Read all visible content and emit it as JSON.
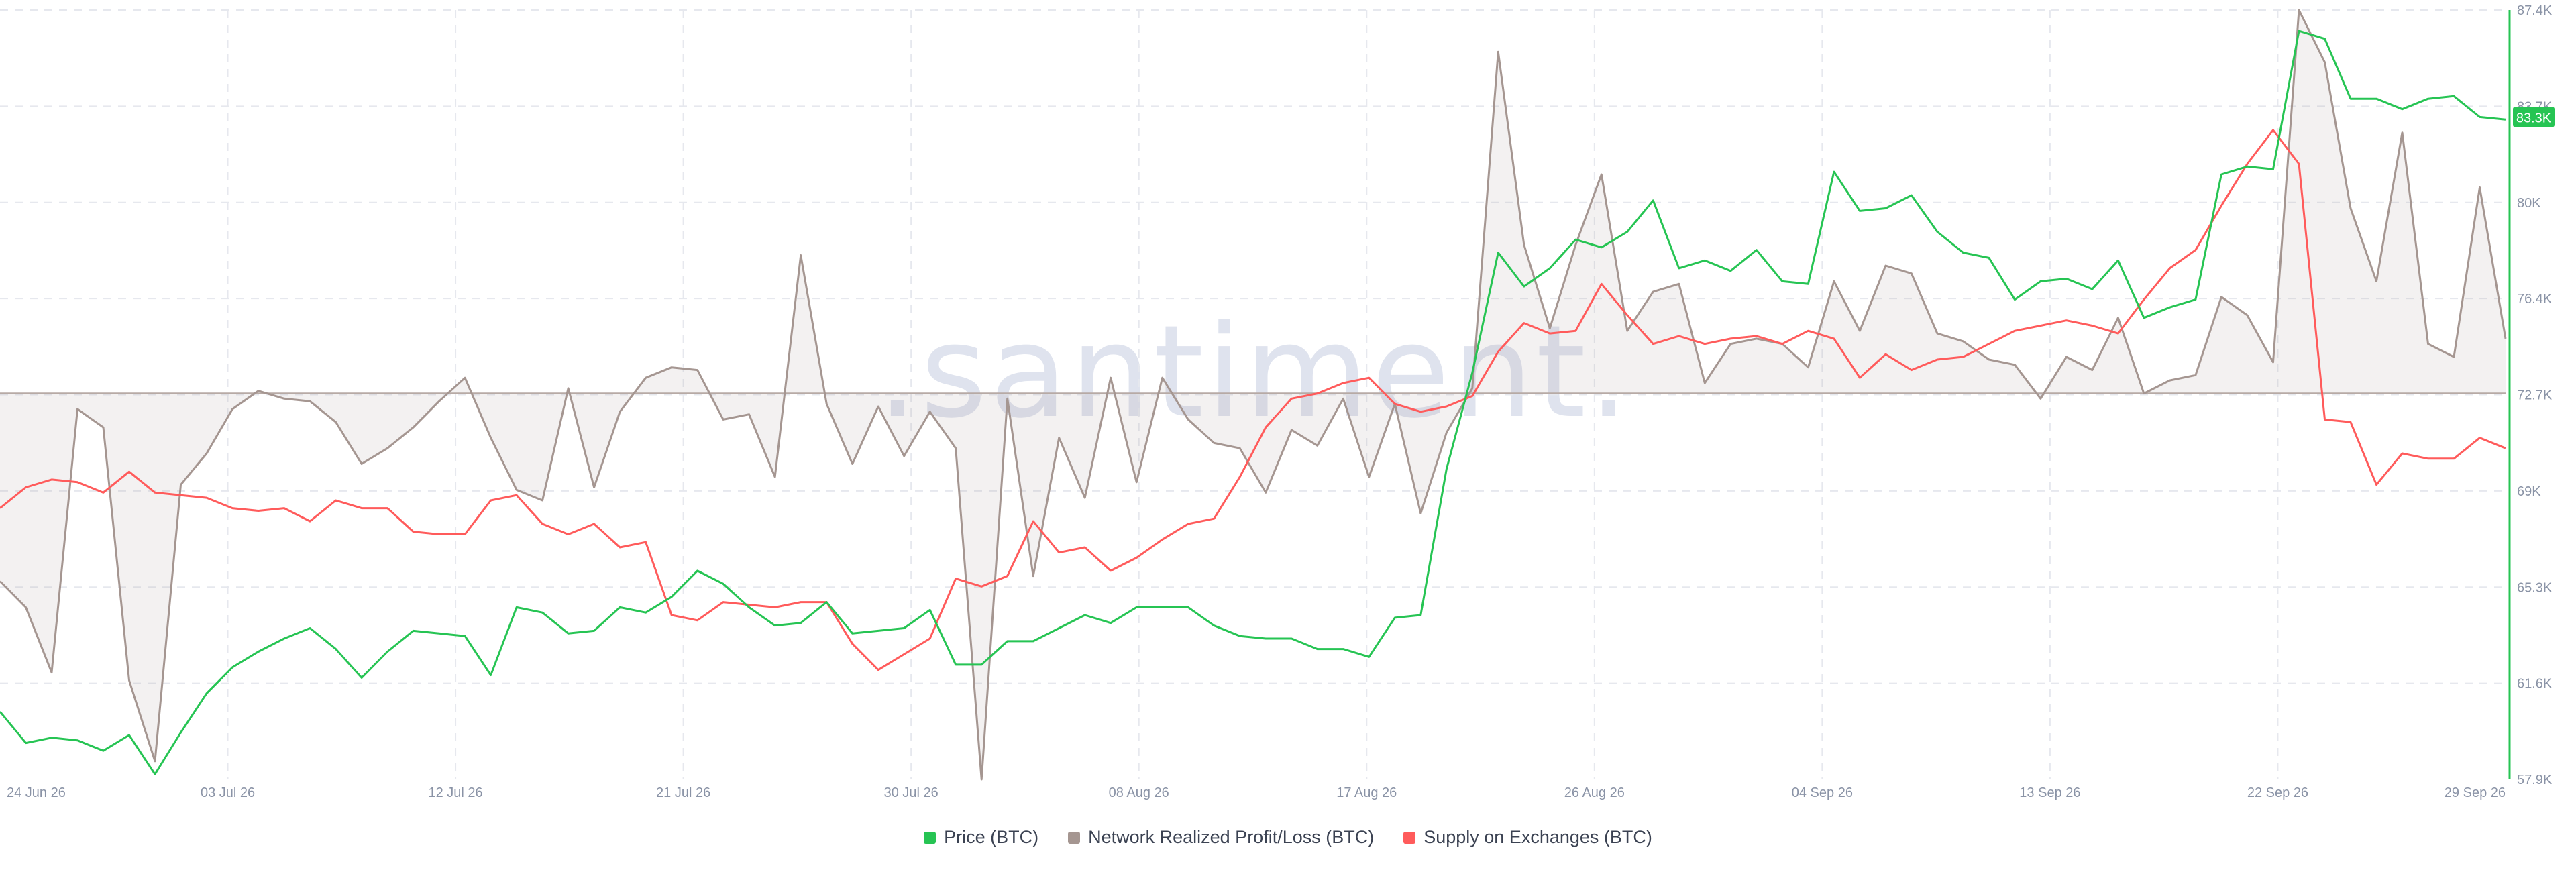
{
  "watermark": ".santiment.",
  "legend": [
    {
      "label": "Price (BTC)",
      "color": "#26c453"
    },
    {
      "label": "Network Realized Profit/Loss (BTC)",
      "color": "#a59691"
    },
    {
      "label": "Supply on Exchanges (BTC)",
      "color": "#ff5b5b"
    }
  ],
  "chart_data": {
    "type": "line",
    "x_tick_labels": [
      "24 Jun 26",
      "03 Jul 26",
      "12 Jul 26",
      "21 Jul 26",
      "30 Jul 26",
      "08 Aug 26",
      "17 Aug 26",
      "26 Aug 26",
      "04 Sep 26",
      "13 Sep 26",
      "22 Sep 26",
      "29 Sep 26"
    ],
    "y_ticks": [
      "57.9K",
      "61.6K",
      "65.3K",
      "69K",
      "72.7K",
      "76.4K",
      "80K",
      "83.7K",
      "87.4K"
    ],
    "ylim": [
      57900,
      87400
    ],
    "x_start": "24 Jun 26",
    "x_end": "29 Sep 26",
    "current_price_label": "83.3K",
    "grid": true,
    "legend_position": "bottom",
    "series": [
      {
        "name": "Price (BTC)",
        "color": "#26c453",
        "values": [
          60500,
          59300,
          59500,
          59400,
          59000,
          59600,
          58100,
          59700,
          61200,
          62200,
          62800,
          63300,
          63700,
          62900,
          61800,
          62800,
          63600,
          63500,
          63400,
          61900,
          64500,
          64300,
          63500,
          63600,
          64500,
          64300,
          64900,
          65900,
          65400,
          64500,
          63800,
          63900,
          64700,
          63500,
          63600,
          63700,
          64400,
          62300,
          62300,
          63200,
          63200,
          63700,
          64200,
          63900,
          64500,
          64500,
          64500,
          63800,
          63400,
          63300,
          63300,
          62900,
          62900,
          62600,
          64100,
          64200,
          69800,
          73500,
          78100,
          76800,
          77500,
          78600,
          78300,
          78900,
          80100,
          77500,
          77800,
          77400,
          78200,
          77000,
          76900,
          81200,
          79700,
          79800,
          80300,
          78900,
          78100,
          77900,
          76300,
          77000,
          77100,
          76700,
          77800,
          75600,
          76000,
          76300,
          81100,
          81400,
          81300,
          86600,
          86300,
          84000,
          84000,
          83600,
          84000,
          84100,
          83300,
          83200
        ]
      },
      {
        "name": "Network Realized Profit/Loss (BTC)",
        "color": "#a59691",
        "values": [
          65500,
          64500,
          62000,
          72100,
          71400,
          61700,
          58600,
          69200,
          70400,
          72100,
          72800,
          72500,
          72400,
          71600,
          70000,
          70600,
          71400,
          72400,
          73300,
          71000,
          69000,
          68600,
          72900,
          69100,
          72000,
          73300,
          73700,
          73600,
          71700,
          71900,
          69500,
          78000,
          72300,
          70000,
          72200,
          70300,
          72000,
          70600,
          57900,
          72500,
          65700,
          71000,
          68700,
          73300,
          69300,
          73300,
          71700,
          70800,
          70600,
          68900,
          71300,
          70700,
          72500,
          69500,
          72300,
          68100,
          71200,
          72900,
          85800,
          78400,
          75200,
          78400,
          81100,
          75100,
          76600,
          76900,
          73100,
          74600,
          74800,
          74600,
          73700,
          77000,
          75100,
          77600,
          77300,
          75000,
          74700,
          74000,
          73800,
          72500,
          74100,
          73600,
          75600,
          72700,
          73200,
          73400,
          76400,
          75700,
          73900,
          87400,
          85400,
          79800,
          77000,
          82700,
          74600,
          74100,
          80600,
          74800
        ]
      },
      {
        "name": "Supply on Exchanges (BTC)",
        "color": "#ff5b5b",
        "values": [
          68300,
          69100,
          69400,
          69300,
          68900,
          69700,
          68900,
          68800,
          68700,
          68300,
          68200,
          68300,
          67800,
          68600,
          68300,
          68300,
          67400,
          67300,
          67300,
          68600,
          68800,
          67700,
          67300,
          67700,
          66800,
          67000,
          64200,
          64000,
          64700,
          64600,
          64500,
          64700,
          64700,
          63100,
          62100,
          62700,
          63300,
          65600,
          65300,
          65700,
          67800,
          66600,
          66800,
          65900,
          66400,
          67100,
          67700,
          67900,
          69500,
          71400,
          72500,
          72700,
          73100,
          73300,
          72300,
          72000,
          72200,
          72600,
          74300,
          75400,
          75000,
          75100,
          76900,
          75700,
          74600,
          74900,
          74600,
          74800,
          74900,
          74600,
          75100,
          74800,
          73300,
          74200,
          73600,
          74000,
          74100,
          74600,
          75100,
          75300,
          75500,
          75300,
          75000,
          76300,
          77500,
          78200,
          79900,
          81500,
          82800,
          81500,
          71700,
          71600,
          69200,
          70400,
          70200,
          70200,
          71000,
          70600
        ]
      }
    ]
  }
}
